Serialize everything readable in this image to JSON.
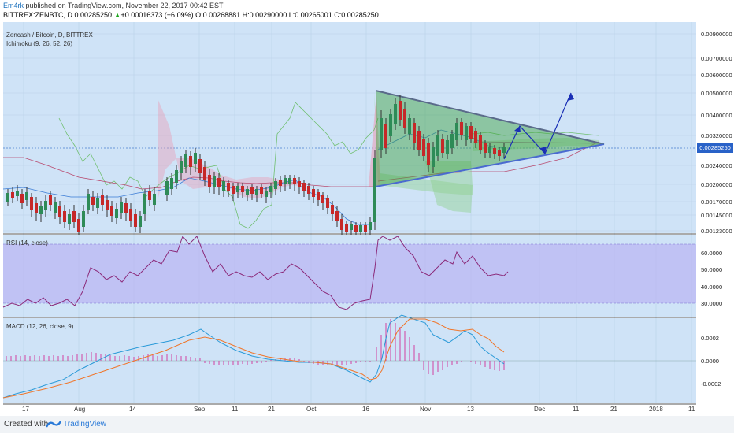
{
  "header": {
    "author": "Em4rk",
    "published": "published on TradingView.com, November 22, 2017 00:42 EST",
    "symbol_line": "BITTREX:ZENBTC, D  0.00285250",
    "change": "+0.00016373 (+6.09%)",
    "ohlc": "O:0.00268881  H:0.00290000  L:0.00265001  C:0.00285250"
  },
  "price_panel": {
    "title": "Zencash / Bitcoin, D, BITTREX",
    "indicator": "Ichimoku (9, 26, 52, 26)",
    "current_price": "0.00285250",
    "axis_ticks": [
      "0.00900000",
      "0.00700000",
      "0.00600000",
      "0.00500000",
      "0.00400000",
      "0.00320000",
      "0.00240000",
      "0.00200000",
      "0.00170000",
      "0.00145000",
      "0.00123000"
    ]
  },
  "rsi_panel": {
    "title": "RSI (14, close)",
    "axis_ticks": [
      "60.0000",
      "50.0000",
      "40.0000",
      "30.0000"
    ]
  },
  "macd_panel": {
    "title": "MACD (12, 26, close, 9)",
    "axis_ticks": [
      "0.0002",
      "0.0000",
      "-0.0002"
    ]
  },
  "x_axis": [
    "17",
    "Aug",
    "14",
    "Sep",
    "11",
    "21",
    "Oct",
    "16",
    "Nov",
    "13",
    "Dec",
    "11",
    "21",
    "2018",
    "11"
  ],
  "footer": {
    "created_with": "Created with",
    "brand": "TradingView"
  },
  "chart_data": {
    "type": "candlestick",
    "title": "Zencash / Bitcoin, D, BITTREX",
    "price_close_series": [
      0.0015,
      0.0016,
      0.00155,
      0.00145,
      0.0014,
      0.0015,
      0.0013,
      0.00125,
      0.0015,
      0.0016,
      0.00155,
      0.0015,
      0.00145,
      0.0014,
      0.0013,
      0.00155,
      0.00165,
      0.0016,
      0.0017,
      0.0016,
      0.0015,
      0.0014,
      0.0017,
      0.002,
      0.0021,
      0.002,
      0.0023,
      0.0025,
      0.0026,
      0.0024,
      0.0022,
      0.002,
      0.0019,
      0.002,
      0.0021,
      0.002,
      0.0018,
      0.0017,
      0.0019,
      0.002,
      0.0021,
      0.0022,
      0.0021,
      0.002,
      0.0019,
      0.0017,
      0.0015,
      0.0014,
      0.00125,
      0.00125,
      0.0013,
      0.00125,
      0.00135,
      0.0043,
      0.0035,
      0.004,
      0.0045,
      0.0042,
      0.0038,
      0.0036,
      0.0032,
      0.003,
      0.0026,
      0.0028,
      0.0032,
      0.0034,
      0.003,
      0.0033,
      0.0036,
      0.0038,
      0.0034,
      0.0032,
      0.003,
      0.0028,
      0.00275,
      0.00285
    ],
    "rsi_series": [
      34,
      34,
      35,
      33,
      34,
      35,
      33,
      34,
      33,
      40,
      51,
      53,
      49,
      50,
      49,
      52,
      51,
      53,
      54,
      50,
      52,
      51,
      58,
      55,
      60,
      62,
      58,
      57,
      52,
      50,
      51,
      50,
      49,
      48,
      50,
      51,
      53,
      50,
      52,
      55,
      57,
      52,
      48,
      45,
      40,
      37,
      35,
      38,
      40,
      42,
      45,
      75,
      82,
      80,
      74,
      70,
      65,
      60,
      55,
      52,
      50,
      55,
      57,
      60,
      58,
      62,
      60,
      55,
      52,
      48,
      47,
      48,
      46,
      50
    ],
    "rsi_levels": [
      30,
      70
    ],
    "macd_axis": [
      -0.0002,
      0.0002
    ],
    "annotations": {
      "triangle_top_start": 0.0051,
      "triangle_bottom_start": 0.002,
      "apex": 0.00295
    }
  }
}
